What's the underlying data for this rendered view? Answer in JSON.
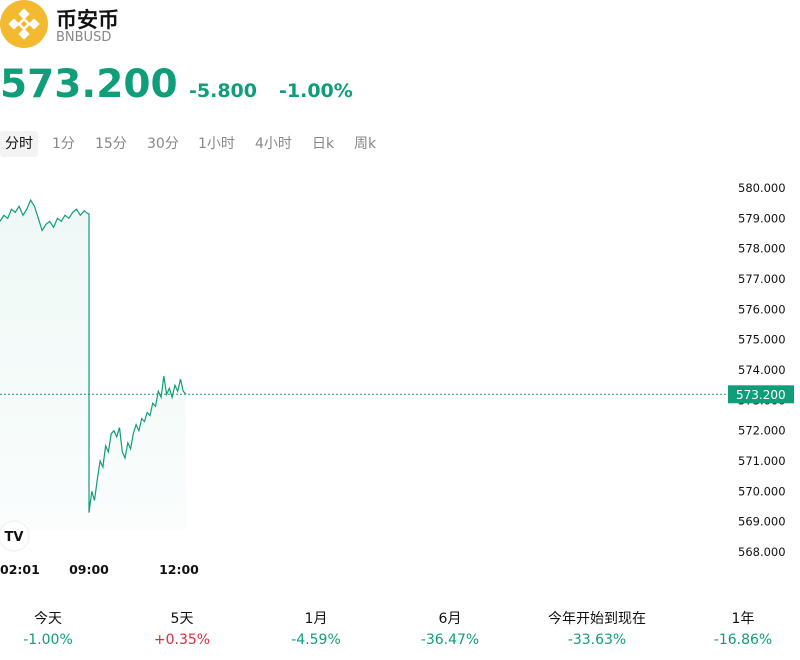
{
  "coin": {
    "name": "币安币",
    "symbol": "BNBUSD",
    "logo_color": "#F3BA2F"
  },
  "quote": {
    "price": "573.200",
    "change": "-5.800",
    "change_percent": "-1.00%"
  },
  "tabs": [
    {
      "label": "分时",
      "active": true
    },
    {
      "label": "1分",
      "active": false
    },
    {
      "label": "15分",
      "active": false
    },
    {
      "label": "30分",
      "active": false
    },
    {
      "label": "1小时",
      "active": false
    },
    {
      "label": "4小时",
      "active": false
    },
    {
      "label": "日k",
      "active": false
    },
    {
      "label": "周k",
      "active": false
    }
  ],
  "chart_data": {
    "type": "area",
    "series": [
      {
        "values": [
          578.9,
          579.1,
          579.0,
          579.3,
          579.2,
          579.4,
          579.1,
          579.3,
          579.6,
          579.4,
          579.0,
          578.6,
          578.8,
          578.9,
          578.7,
          579.0,
          578.9,
          579.1,
          579.0,
          579.2,
          579.3,
          579.1,
          579.25,
          579.15,
          569.3,
          570.0,
          569.7,
          570.4,
          571.0,
          570.8,
          571.5,
          571.3,
          571.9,
          572.0,
          571.8,
          572.1,
          571.3,
          571.1,
          571.6,
          571.4,
          571.9,
          572.2,
          572.0,
          572.4,
          572.3,
          572.6,
          572.5,
          572.9,
          572.8,
          573.3,
          573.1,
          573.8,
          573.2,
          573.4,
          573.1,
          573.5,
          573.3,
          573.7,
          573.3,
          573.2
        ]
      }
    ],
    "x_tick_labels": [
      "02:01",
      "09:00",
      "12:00"
    ],
    "y_tick_labels": [
      "580.000",
      "579.000",
      "578.000",
      "577.000",
      "576.000",
      "575.000",
      "574.000",
      "573.000",
      "572.000",
      "571.000",
      "570.000",
      "569.000",
      "568.000"
    ],
    "ylim": [
      568,
      580
    ],
    "last_value_label": "573.200",
    "last_value": 573.2,
    "line_color": "#0f9d7a",
    "grid": false
  },
  "watermark": "TV",
  "performance": [
    {
      "label": "今天",
      "value": "-1.00%",
      "direction": "neg"
    },
    {
      "label": "5天",
      "value": "+0.35%",
      "direction": "pos"
    },
    {
      "label": "1月",
      "value": "-4.59%",
      "direction": "neg"
    },
    {
      "label": "6月",
      "value": "-36.47%",
      "direction": "neg"
    },
    {
      "label": "今年开始到现在",
      "value": "-33.63%",
      "direction": "neg"
    },
    {
      "label": "1年",
      "value": "-16.86%",
      "direction": "neg"
    }
  ]
}
